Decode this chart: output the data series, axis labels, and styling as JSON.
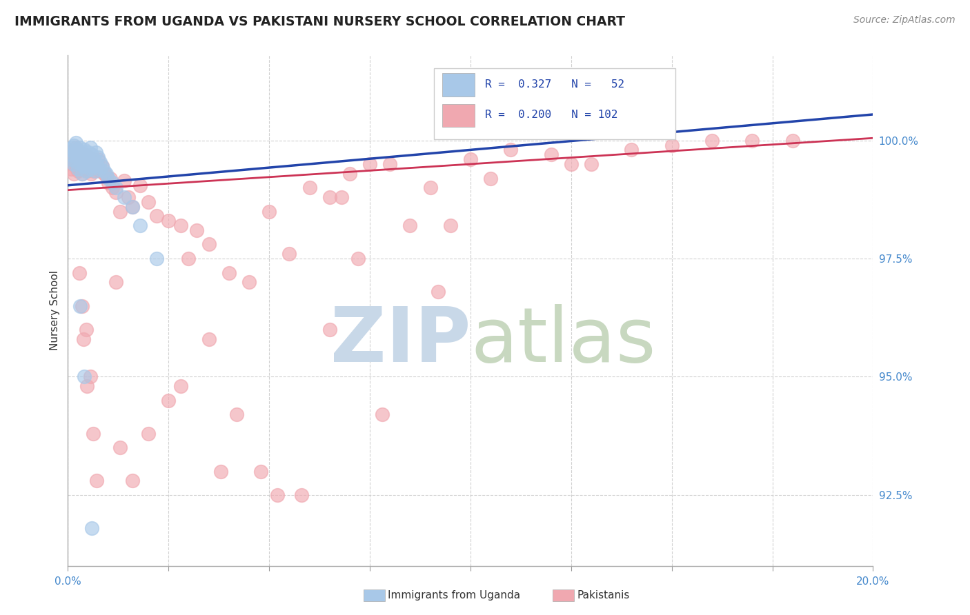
{
  "title": "IMMIGRANTS FROM UGANDA VS PAKISTANI NURSERY SCHOOL CORRELATION CHART",
  "source_text": "Source: ZipAtlas.com",
  "ylabel": "Nursery School",
  "xlim": [
    0.0,
    20.0
  ],
  "ylim": [
    91.0,
    101.8
  ],
  "yticks": [
    92.5,
    95.0,
    97.5,
    100.0
  ],
  "ytick_labels": [
    "92.5%",
    "95.0%",
    "97.5%",
    "100.0%"
  ],
  "xticks": [
    0.0,
    2.5,
    5.0,
    7.5,
    10.0,
    12.5,
    15.0,
    17.5,
    20.0
  ],
  "blue_color": "#A8C8E8",
  "pink_color": "#F0A8B0",
  "blue_line_color": "#2244AA",
  "pink_line_color": "#CC3355",
  "watermark_zip_color": "#C8D8E8",
  "watermark_atlas_color": "#C8D8C0",
  "background_color": "#FFFFFF",
  "grid_color": "#CCCCCC",
  "blue_scatter_x": [
    0.05,
    0.08,
    0.1,
    0.12,
    0.15,
    0.15,
    0.18,
    0.2,
    0.2,
    0.22,
    0.25,
    0.25,
    0.28,
    0.3,
    0.3,
    0.32,
    0.35,
    0.35,
    0.38,
    0.4,
    0.4,
    0.42,
    0.45,
    0.45,
    0.48,
    0.5,
    0.52,
    0.55,
    0.55,
    0.58,
    0.6,
    0.62,
    0.65,
    0.68,
    0.7,
    0.72,
    0.75,
    0.78,
    0.8,
    0.85,
    0.9,
    0.95,
    1.0,
    1.1,
    1.2,
    1.4,
    1.6,
    1.8,
    2.2,
    0.3,
    0.4,
    0.6
  ],
  "blue_scatter_y": [
    99.8,
    99.6,
    99.7,
    99.85,
    99.5,
    99.9,
    99.75,
    99.65,
    99.95,
    99.55,
    99.8,
    99.4,
    99.7,
    99.6,
    99.85,
    99.5,
    99.75,
    99.3,
    99.65,
    99.8,
    99.45,
    99.55,
    99.7,
    99.35,
    99.6,
    99.75,
    99.5,
    99.4,
    99.85,
    99.55,
    99.7,
    99.45,
    99.6,
    99.35,
    99.75,
    99.5,
    99.65,
    99.4,
    99.55,
    99.45,
    99.35,
    99.3,
    99.2,
    99.1,
    99.0,
    98.8,
    98.6,
    98.2,
    97.5,
    96.5,
    95.0,
    91.8
  ],
  "pink_scatter_x": [
    0.05,
    0.08,
    0.1,
    0.12,
    0.15,
    0.15,
    0.18,
    0.2,
    0.2,
    0.22,
    0.25,
    0.25,
    0.28,
    0.3,
    0.3,
    0.32,
    0.35,
    0.35,
    0.38,
    0.4,
    0.4,
    0.42,
    0.45,
    0.48,
    0.5,
    0.52,
    0.55,
    0.58,
    0.6,
    0.62,
    0.65,
    0.7,
    0.72,
    0.75,
    0.8,
    0.85,
    0.9,
    0.95,
    1.0,
    1.05,
    1.1,
    1.2,
    1.3,
    1.4,
    1.5,
    1.6,
    1.8,
    2.0,
    2.2,
    2.5,
    2.8,
    3.0,
    3.2,
    3.5,
    4.0,
    4.5,
    5.0,
    5.5,
    6.0,
    6.5,
    7.0,
    7.5,
    8.0,
    9.0,
    10.0,
    11.0,
    12.0,
    13.0,
    14.0,
    15.0,
    16.0,
    17.0,
    18.0,
    1.2,
    0.35,
    0.45,
    0.55,
    2.5,
    3.8,
    4.2,
    5.2,
    6.8,
    7.2,
    8.5,
    9.5,
    0.28,
    0.38,
    0.48,
    0.62,
    0.72,
    1.3,
    1.6,
    2.0,
    2.8,
    3.5,
    4.8,
    5.8,
    6.5,
    7.8,
    9.2,
    10.5,
    12.5
  ],
  "pink_scatter_y": [
    99.6,
    99.4,
    99.75,
    99.5,
    99.8,
    99.3,
    99.65,
    99.55,
    99.85,
    99.45,
    99.7,
    99.35,
    99.6,
    99.75,
    99.4,
    99.5,
    99.65,
    99.3,
    99.55,
    99.7,
    99.45,
    99.4,
    99.6,
    99.35,
    99.5,
    99.65,
    99.4,
    99.3,
    99.55,
    99.45,
    99.35,
    99.5,
    99.4,
    99.6,
    99.35,
    99.45,
    99.3,
    99.25,
    99.1,
    99.2,
    99.0,
    98.9,
    98.5,
    99.15,
    98.8,
    98.6,
    99.05,
    98.7,
    98.4,
    98.3,
    98.2,
    97.5,
    98.1,
    97.8,
    97.2,
    97.0,
    98.5,
    97.6,
    99.0,
    98.8,
    99.3,
    99.5,
    99.5,
    99.0,
    99.6,
    99.8,
    99.7,
    99.5,
    99.8,
    99.9,
    100.0,
    100.0,
    100.0,
    97.0,
    96.5,
    96.0,
    95.0,
    94.5,
    93.0,
    94.2,
    92.5,
    98.8,
    97.5,
    98.2,
    98.2,
    97.2,
    95.8,
    94.8,
    93.8,
    92.8,
    93.5,
    92.8,
    93.8,
    94.8,
    95.8,
    93.0,
    92.5,
    96.0,
    94.2,
    96.8,
    99.2,
    99.5
  ]
}
